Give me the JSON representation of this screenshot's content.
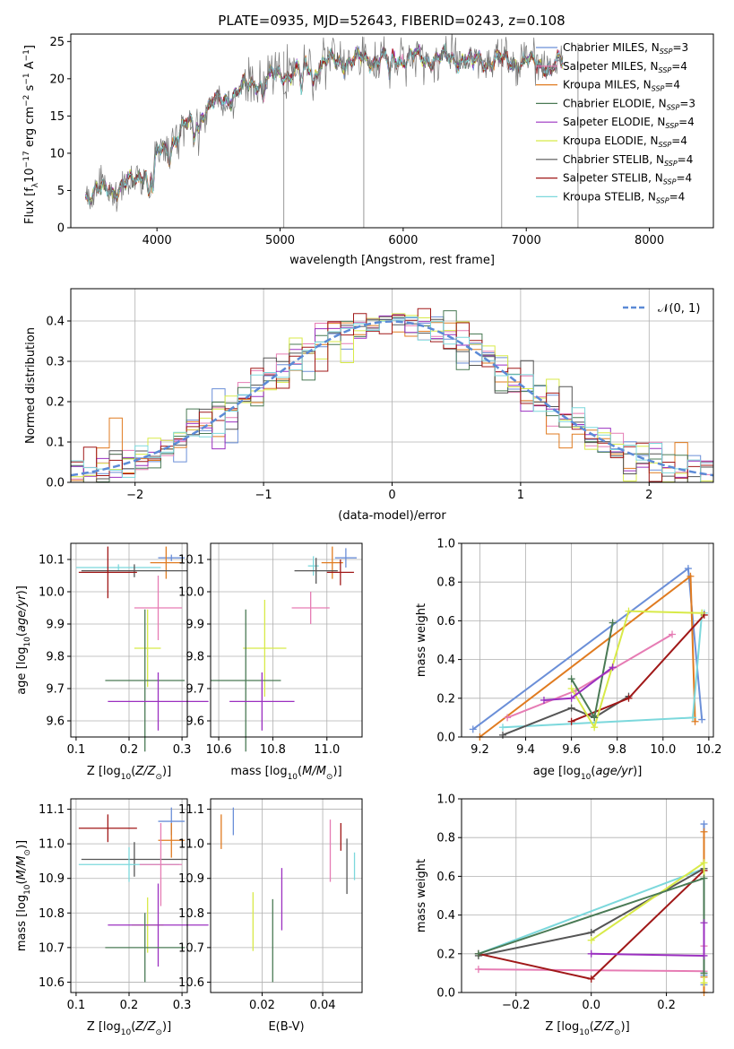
{
  "title": "PLATE=0935, MJD=52643, FIBERID=0243, z=0.108",
  "colors": {
    "chabrier_miles": "#6b8fd8",
    "salpeter_miles": "#e67cb4",
    "kroupa_miles": "#e07b20",
    "chabrier_elodie": "#4a7a55",
    "salpeter_elodie": "#9b30c0",
    "kroupa_elodie": "#d8ea48",
    "chabrier_stelib": "#555555",
    "salpeter_stelib": "#a01818",
    "kroupa_stelib": "#7cd8dc"
  },
  "legend": [
    {
      "key": "chabrier_miles",
      "label": "Chabrier MILES, N",
      "sub": "SSP",
      "tail": "=3"
    },
    {
      "key": "salpeter_miles",
      "label": "Salpeter MILES, N",
      "sub": "SSP",
      "tail": "=4"
    },
    {
      "key": "kroupa_miles",
      "label": "Kroupa MILES, N",
      "sub": "SSP",
      "tail": "=4"
    },
    {
      "key": "chabrier_elodie",
      "label": "Chabrier ELODIE, N",
      "sub": "SSP",
      "tail": "=3"
    },
    {
      "key": "salpeter_elodie",
      "label": "Salpeter ELODIE, N",
      "sub": "SSP",
      "tail": "=4"
    },
    {
      "key": "kroupa_elodie",
      "label": "Kroupa ELODIE, N",
      "sub": "SSP",
      "tail": "=4"
    },
    {
      "key": "chabrier_stelib",
      "label": "Chabrier STELIB, N",
      "sub": "SSP",
      "tail": "=4"
    },
    {
      "key": "salpeter_stelib",
      "label": "Salpeter STELIB, N",
      "sub": "SSP",
      "tail": "=4"
    },
    {
      "key": "kroupa_stelib",
      "label": "Kroupa STELIB, N",
      "sub": "SSP",
      "tail": "=4"
    }
  ],
  "normal_label": "𝒩(0, 1)",
  "chart_data": [
    {
      "id": "spectrum",
      "type": "line",
      "xlabel": "wavelength [Angstrom, rest frame]",
      "ylabel": "Flux [f_λ 10^-17 erg cm^-2 s^-1 A^-1]",
      "xlim": [
        3300,
        8520
      ],
      "ylim": [
        0,
        26
      ],
      "xticks": [
        4000,
        5000,
        6000,
        7000,
        8000
      ],
      "yticks": [
        0,
        5,
        10,
        15,
        20,
        25
      ],
      "continuum_x": [
        3420,
        3600,
        3800,
        4000,
        4200,
        4400,
        4600,
        4800,
        5000,
        5200,
        5500,
        6000,
        6500,
        7000,
        7300
      ],
      "continuum_y": [
        4.5,
        5.0,
        6.0,
        9.5,
        13.0,
        16.0,
        17.8,
        19.5,
        20.5,
        21.5,
        22.5,
        22.8,
        22.6,
        22.2,
        21.8
      ],
      "sky_line_x": [
        5030,
        5680,
        6800,
        7420
      ],
      "grid": false,
      "legend_position": "upper-right"
    },
    {
      "id": "residuals",
      "type": "histogram",
      "xlabel": "(data-model)/error",
      "ylabel": "Normed distribution",
      "xlim": [
        -2.5,
        2.5
      ],
      "ylim": [
        0,
        0.48
      ],
      "xticks": [
        -2,
        -1,
        0,
        1,
        2
      ],
      "yticks": [
        0.0,
        0.1,
        0.2,
        0.3,
        0.4
      ],
      "bin_width": 0.1,
      "reference_curve": "normal(0,1)",
      "grid": true,
      "legend_position": "upper-right"
    },
    {
      "id": "age_vs_Z",
      "type": "scatter",
      "xlabel": "Z [log10(Z/Z⊙)]",
      "ylabel": "age  [log10(age/yr)]",
      "xlim": [
        0.09,
        0.31
      ],
      "ylim": [
        9.55,
        10.15
      ],
      "xticks": [
        0.1,
        0.2,
        0.3
      ],
      "yticks": [
        9.6,
        9.7,
        9.8,
        9.9,
        10.0,
        10.1
      ],
      "points": [
        {
          "s": "chabrier_miles",
          "x": 0.28,
          "xerr": 0.025,
          "y": 10.105,
          "yerr": 0.01
        },
        {
          "s": "kroupa_miles",
          "x": 0.27,
          "xerr": 0.03,
          "y": 10.09,
          "yerr": 0.05
        },
        {
          "s": "kroupa_stelib",
          "x": 0.18,
          "xerr": 0.08,
          "y": 10.075,
          "yerr": 0.01
        },
        {
          "s": "chabrier_stelib",
          "x": 0.21,
          "xerr": 0.1,
          "y": 10.065,
          "yerr": 0.02
        },
        {
          "s": "salpeter_stelib",
          "x": 0.16,
          "xerr": 0.055,
          "y": 10.06,
          "yerr": 0.08
        },
        {
          "s": "salpeter_miles",
          "x": 0.255,
          "xerr": 0.045,
          "y": 9.95,
          "yerr": 0.1
        },
        {
          "s": "kroupa_elodie",
          "x": 0.235,
          "xerr": 0.025,
          "y": 9.825,
          "yerr": 0.12
        },
        {
          "s": "chabrier_elodie",
          "x": 0.23,
          "xerr": 0.075,
          "y": 9.725,
          "yerr": 0.22
        },
        {
          "s": "salpeter_elodie",
          "x": 0.255,
          "xerr": 0.095,
          "y": 9.66,
          "yerr": 0.09
        }
      ],
      "grid": true
    },
    {
      "id": "age_vs_mass",
      "type": "scatter",
      "xlabel": "mass [log10(M/M⊙)]",
      "ylabel": "",
      "xlim": [
        10.57,
        11.13
      ],
      "ylim": [
        9.55,
        10.15
      ],
      "xticks": [
        10.6,
        10.8,
        11.0
      ],
      "yticks": [
        9.6,
        9.7,
        9.8,
        9.9,
        10.0,
        10.1
      ],
      "points": [
        {
          "s": "chabrier_miles",
          "x": 11.07,
          "xerr": 0.04,
          "y": 10.105,
          "yerr": 0.03
        },
        {
          "s": "kroupa_miles",
          "x": 11.02,
          "xerr": 0.04,
          "y": 10.09,
          "yerr": 0.05
        },
        {
          "s": "kroupa_stelib",
          "x": 10.95,
          "xerr": 0.02,
          "y": 10.08,
          "yerr": 0.03
        },
        {
          "s": "chabrier_stelib",
          "x": 10.96,
          "xerr": 0.08,
          "y": 10.065,
          "yerr": 0.04
        },
        {
          "s": "salpeter_stelib",
          "x": 11.05,
          "xerr": 0.05,
          "y": 10.06,
          "yerr": 0.04
        },
        {
          "s": "salpeter_miles",
          "x": 10.94,
          "xerr": 0.07,
          "y": 9.95,
          "yerr": 0.05
        },
        {
          "s": "kroupa_elodie",
          "x": 10.77,
          "xerr": 0.08,
          "y": 9.825,
          "yerr": 0.15
        },
        {
          "s": "chabrier_elodie",
          "x": 10.7,
          "xerr": 0.13,
          "y": 9.725,
          "yerr": 0.22
        },
        {
          "s": "salpeter_elodie",
          "x": 10.76,
          "xerr": 0.12,
          "y": 9.66,
          "yerr": 0.09
        }
      ],
      "grid": true
    },
    {
      "id": "mass_weight_vs_age",
      "type": "line",
      "xlabel": "age  [log10(age/yr)]",
      "ylabel": "mass weight",
      "xlim": [
        9.12,
        10.22
      ],
      "ylim": [
        0,
        1.0
      ],
      "xticks": [
        9.2,
        9.4,
        9.6,
        9.8,
        10.0,
        10.2
      ],
      "yticks": [
        0.0,
        0.2,
        0.4,
        0.6,
        0.8,
        1.0
      ],
      "series": [
        {
          "s": "chabrier_miles",
          "x": [
            9.17,
            10.11,
            10.17
          ],
          "y": [
            0.04,
            0.87,
            0.09
          ]
        },
        {
          "s": "kroupa_miles",
          "x": [
            9.2,
            10.12,
            10.14
          ],
          "y": [
            0.0,
            0.83,
            0.08
          ]
        },
        {
          "s": "salpeter_miles",
          "x": [
            9.32,
            9.62,
            10.04
          ],
          "y": [
            0.1,
            0.24,
            0.53
          ]
        },
        {
          "s": "kroupa_stelib",
          "x": [
            9.3,
            10.13,
            10.17,
            10.18
          ],
          "y": [
            0.05,
            0.1,
            0.64,
            0.64
          ]
        },
        {
          "s": "chabrier_stelib",
          "x": [
            9.3,
            9.6,
            9.7,
            9.85
          ],
          "y": [
            0.01,
            0.15,
            0.1,
            0.21
          ]
        },
        {
          "s": "salpeter_stelib",
          "x": [
            9.6,
            9.85,
            10.18
          ],
          "y": [
            0.08,
            0.2,
            0.63
          ]
        },
        {
          "s": "kroupa_elodie",
          "x": [
            9.6,
            9.7,
            9.85,
            10.17
          ],
          "y": [
            0.25,
            0.05,
            0.65,
            0.64
          ]
        },
        {
          "s": "chabrier_elodie",
          "x": [
            9.6,
            9.7,
            9.78
          ],
          "y": [
            0.3,
            0.1,
            0.59
          ]
        },
        {
          "s": "salpeter_elodie",
          "x": [
            9.48,
            9.6,
            9.78
          ],
          "y": [
            0.19,
            0.2,
            0.36
          ]
        }
      ],
      "grid": true
    },
    {
      "id": "mass_vs_Z",
      "type": "scatter",
      "xlabel": "Z [log10(Z/Z⊙)]",
      "ylabel": "mass [log10(M/M⊙)]",
      "xlim": [
        0.09,
        0.31
      ],
      "ylim": [
        10.57,
        11.13
      ],
      "xticks": [
        0.1,
        0.2,
        0.3
      ],
      "yticks": [
        10.6,
        10.7,
        10.8,
        10.9,
        11.0,
        11.1
      ],
      "points": [
        {
          "s": "chabrier_miles",
          "x": 0.28,
          "xerr": 0.025,
          "y": 11.065,
          "yerr": 0.04
        },
        {
          "s": "salpeter_stelib",
          "x": 0.16,
          "xerr": 0.055,
          "y": 11.045,
          "yerr": 0.04
        },
        {
          "s": "kroupa_miles",
          "x": 0.28,
          "xerr": 0.025,
          "y": 11.01,
          "yerr": 0.05
        },
        {
          "s": "chabrier_stelib",
          "x": 0.21,
          "xerr": 0.1,
          "y": 10.955,
          "yerr": 0.05
        },
        {
          "s": "kroupa_stelib",
          "x": 0.2,
          "xerr": 0.095,
          "y": 10.94,
          "yerr": 0.05
        },
        {
          "s": "salpeter_miles",
          "x": 0.26,
          "xerr": 0.04,
          "y": 10.94,
          "yerr": 0.12
        },
        {
          "s": "kroupa_elodie",
          "x": 0.235,
          "xerr": 0.03,
          "y": 10.765,
          "yerr": 0.08
        },
        {
          "s": "salpeter_elodie",
          "x": 0.255,
          "xerr": 0.095,
          "y": 10.765,
          "yerr": 0.12
        },
        {
          "s": "chabrier_elodie",
          "x": 0.23,
          "xerr": 0.075,
          "y": 10.7,
          "yerr": 0.1
        }
      ],
      "grid": true
    },
    {
      "id": "mass_vs_EBV",
      "type": "scatter",
      "xlabel": "E(B-V)",
      "ylabel": "",
      "xlim": [
        0.003,
        0.053
      ],
      "ylim": [
        10.57,
        11.13
      ],
      "xticks": [
        0.02,
        0.04
      ],
      "yticks": [
        10.6,
        10.7,
        10.8,
        10.9,
        11.0,
        11.1
      ],
      "points": [
        {
          "s": "chabrier_miles",
          "x": 0.0105,
          "y": 11.065,
          "yerr": 0.04
        },
        {
          "s": "kroupa_miles",
          "x": 0.0065,
          "y": 11.035,
          "yerr": 0.05
        },
        {
          "s": "salpeter_stelib",
          "x": 0.046,
          "y": 11.02,
          "yerr": 0.04
        },
        {
          "s": "salpeter_miles",
          "x": 0.0425,
          "y": 10.98,
          "yerr": 0.09
        },
        {
          "s": "chabrier_stelib",
          "x": 0.048,
          "y": 10.935,
          "yerr": 0.08
        },
        {
          "s": "kroupa_stelib",
          "x": 0.0505,
          "y": 10.935,
          "yerr": 0.04
        },
        {
          "s": "salpeter_elodie",
          "x": 0.0265,
          "y": 10.84,
          "yerr": 0.09
        },
        {
          "s": "kroupa_elodie",
          "x": 0.017,
          "y": 10.775,
          "yerr": 0.085
        },
        {
          "s": "chabrier_elodie",
          "x": 0.0235,
          "y": 10.72,
          "yerr": 0.12
        }
      ],
      "grid": true
    },
    {
      "id": "mass_weight_vs_Z",
      "type": "line",
      "xlabel": "Z [log10(Z/Z⊙)]",
      "ylabel": "mass weight",
      "xlim": [
        -0.345,
        0.325
      ],
      "ylim": [
        0,
        1.0
      ],
      "xticks": [
        -0.2,
        0.0,
        0.2
      ],
      "yticks": [
        0.0,
        0.2,
        0.4,
        0.6,
        0.8,
        1.0
      ],
      "series": [
        {
          "s": "chabrier_miles",
          "x": [
            0.3,
            0.3,
            0.3
          ],
          "y": [
            0.04,
            0.87,
            0.09
          ]
        },
        {
          "s": "kroupa_miles",
          "x": [
            0.3,
            0.3,
            0.3
          ],
          "y": [
            0.0,
            0.83,
            0.08
          ]
        },
        {
          "s": "salpeter_miles",
          "x": [
            -0.3,
            0.3,
            0.3
          ],
          "y": [
            0.12,
            0.11,
            0.24
          ]
        },
        {
          "s": "kroupa_stelib",
          "x": [
            -0.3,
            0.3,
            0.3
          ],
          "y": [
            0.2,
            0.64,
            0.1
          ]
        },
        {
          "s": "chabrier_stelib",
          "x": [
            -0.3,
            0.0,
            0.3
          ],
          "y": [
            0.19,
            0.31,
            0.64
          ]
        },
        {
          "s": "salpeter_stelib",
          "x": [
            -0.3,
            0.0,
            0.3
          ],
          "y": [
            0.2,
            0.07,
            0.63
          ]
        },
        {
          "s": "kroupa_elodie",
          "x": [
            0.0,
            0.3,
            0.3
          ],
          "y": [
            0.27,
            0.67,
            0.05
          ]
        },
        {
          "s": "chabrier_elodie",
          "x": [
            -0.3,
            0.3,
            0.3
          ],
          "y": [
            0.2,
            0.59,
            0.1
          ]
        },
        {
          "s": "salpeter_elodie",
          "x": [
            0.0,
            0.3,
            0.3
          ],
          "y": [
            0.2,
            0.19,
            0.36
          ]
        }
      ],
      "grid": true
    }
  ]
}
